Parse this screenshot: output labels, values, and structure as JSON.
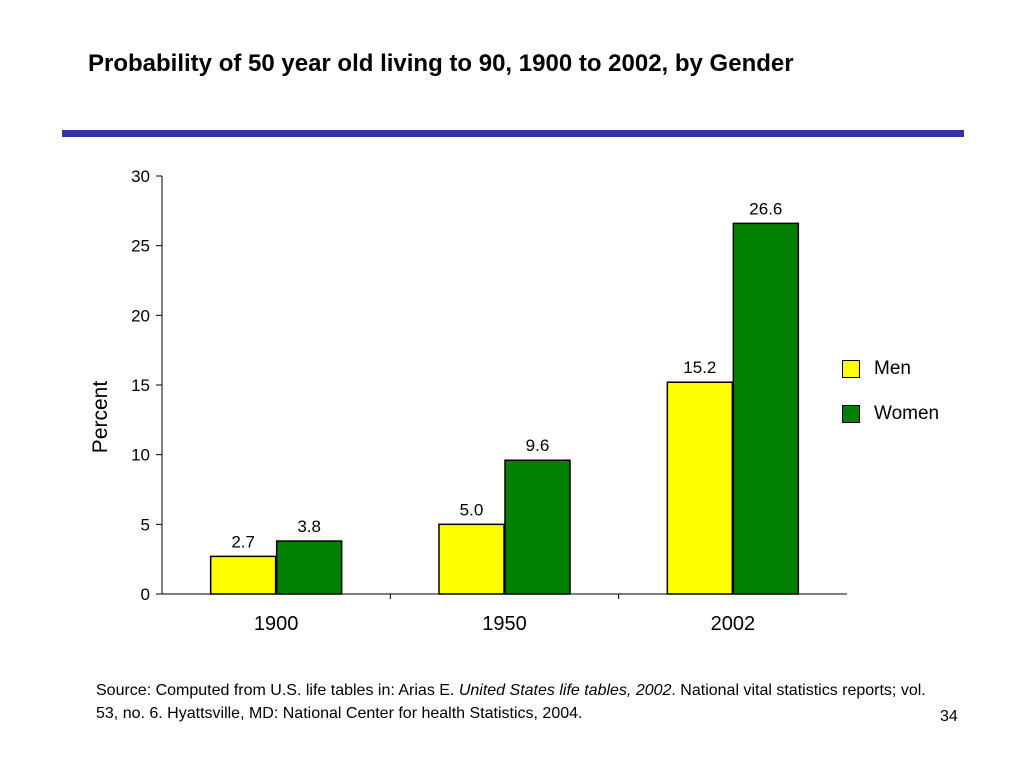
{
  "slide": {
    "title": "Probability of 50 year old living to 90, 1900 to 2002, by Gender",
    "rule_color": "#3333a0",
    "page_number": "34"
  },
  "source": {
    "prefix": "Source:  Computed from U.S. life tables in:  Arias E. ",
    "italic": "United States life tables, 2002",
    "suffix": ".  National vital statistics reports; vol. 53, no. 6.  Hyattsville, MD: National Center for health Statistics, 2004."
  },
  "chart_data": {
    "type": "bar",
    "title": "Probability of 50 year old living to 90, 1900 to 2002, by Gender",
    "xlabel": "",
    "ylabel": "Percent",
    "ylim": [
      0,
      30
    ],
    "yticks": [
      0,
      5,
      10,
      15,
      20,
      25,
      30
    ],
    "categories": [
      "1900",
      "1950",
      "2002"
    ],
    "series": [
      {
        "name": "Men",
        "color": "#ffff00",
        "values": [
          2.7,
          5.0,
          15.2
        ],
        "labels": [
          "2.7",
          "5.0",
          "15.2"
        ]
      },
      {
        "name": "Women",
        "color": "#008000",
        "values": [
          3.8,
          9.6,
          26.6
        ],
        "labels": [
          "3.8",
          "9.6",
          "26.6"
        ]
      }
    ],
    "grid": false,
    "legend_position": "right"
  }
}
